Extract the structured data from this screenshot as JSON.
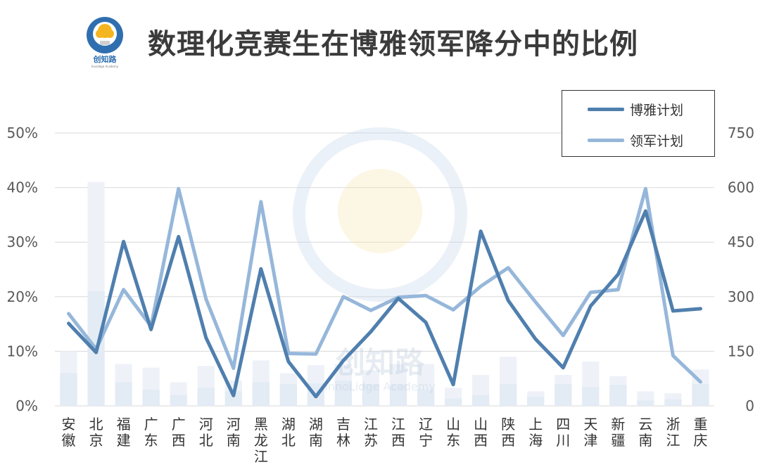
{
  "header": {
    "title": "数理化竞赛生在博雅领军降分中的比例",
    "logo_text": "创知路",
    "logo_subtext": "Innolidge Academy"
  },
  "watermark": {
    "text": "创知路",
    "subtext": "InnoLidge Academy"
  },
  "colors": {
    "boya": "#4f7fae",
    "lingjun": "#96b7da",
    "bar_light": "#eef2f8",
    "bar_dark": "#e3ebf5",
    "grid": "#d9d9d9",
    "axis_text": "#595959"
  },
  "chart_data": {
    "type": "line",
    "title": "数理化竞赛生在博雅领军降分中的比例",
    "categories": [
      "安徽",
      "北京",
      "福建",
      "广东",
      "广西",
      "河北",
      "河南",
      "黑龙江",
      "湖北",
      "湖南",
      "吉林",
      "江苏",
      "江西",
      "辽宁",
      "山东",
      "山西",
      "陕西",
      "上海",
      "四川",
      "天津",
      "新疆",
      "云南",
      "浙江",
      "重庆"
    ],
    "category_labels": [
      "安\n徽",
      "北\n京",
      "福\n建",
      "广\n东",
      "广\n西",
      "河\n北",
      "河\n南",
      "黑\n龙\n江",
      "湖\n北",
      "湖\n南",
      "吉\n林",
      "江\n苏",
      "江\n西",
      "辽\n宁",
      "山\n东",
      "山\n西",
      "陕\n西",
      "上\n海",
      "四\n川",
      "天\n津",
      "新\n疆",
      "云\n南",
      "浙\n江",
      "重\n庆"
    ],
    "y_left": {
      "ticks": [
        "0%",
        "10%",
        "20%",
        "30%",
        "40%",
        "50%"
      ],
      "ylim": [
        0,
        50
      ],
      "unit": "%"
    },
    "y_right": {
      "ticks": [
        "0",
        "150",
        "300",
        "450",
        "600",
        "750"
      ],
      "ylim": [
        0,
        750
      ]
    },
    "series": [
      {
        "name": "博雅计划",
        "axis": "left",
        "values": [
          15.1,
          9.8,
          30.1,
          14.0,
          31.0,
          12.5,
          1.9,
          25.1,
          8.1,
          1.7,
          8.3,
          13.6,
          19.7,
          15.3,
          3.9,
          32.0,
          19.3,
          12.2,
          7.0,
          18.3,
          24.1,
          35.7,
          17.4,
          17.8
        ]
      },
      {
        "name": "领军计划",
        "axis": "left",
        "values": [
          16.9,
          10.4,
          21.3,
          14.6,
          39.8,
          19.6,
          6.9,
          37.4,
          9.6,
          9.5,
          20.0,
          17.5,
          19.9,
          20.2,
          17.6,
          21.9,
          25.3,
          19.0,
          12.9,
          20.8,
          21.3,
          39.8,
          9.2,
          4.4
        ]
      },
      {
        "name": "bars_total",
        "axis": "right",
        "values": [
          150,
          615,
          115,
          105,
          65,
          110,
          70,
          125,
          90,
          112,
          115,
          98,
          115,
          115,
          50,
          85,
          135,
          40,
          85,
          122,
          82,
          40,
          35,
          100
        ]
      },
      {
        "name": "bars_inner",
        "axis": "right",
        "values": [
          90,
          315,
          65,
          45,
          30,
          50,
          40,
          65,
          60,
          62,
          70,
          60,
          60,
          45,
          20,
          30,
          60,
          25,
          60,
          52,
          58,
          15,
          18,
          60
        ]
      }
    ],
    "legend": {
      "position": "top-right",
      "entries": [
        "博雅计划",
        "领军计划"
      ]
    },
    "grid": true
  }
}
